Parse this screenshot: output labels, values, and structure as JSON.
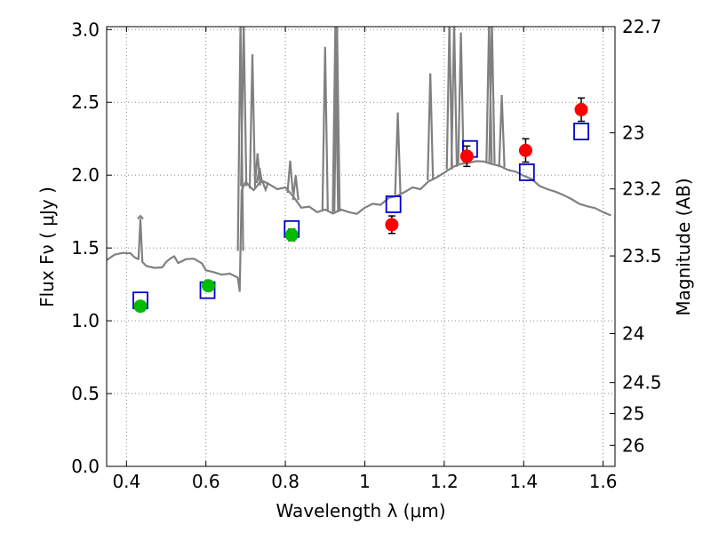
{
  "chart_data": {
    "type": "scatter",
    "xlabel": "Wavelength  λ (μm)",
    "ylabel": "Flux  Fν  ( μJy )",
    "ylabel_right": "Magnitude (AB)",
    "xlim": [
      0.35,
      1.63
    ],
    "ylim": [
      0.0,
      3.02
    ],
    "grid": true,
    "x_ticks": [
      0.4,
      0.6,
      0.8,
      1.0,
      1.2,
      1.4,
      1.6
    ],
    "x_tick_labels": [
      "0.4",
      "0.6",
      "0.8",
      "1",
      "1.2",
      "1.4",
      "1.6"
    ],
    "y_ticks": [
      0.0,
      0.5,
      1.0,
      1.5,
      2.0,
      2.5,
      3.0
    ],
    "y_tick_labels": [
      "0.0",
      "0.5",
      "1.0",
      "1.5",
      "2.0",
      "2.5",
      "3.0"
    ],
    "right_ticks": [
      {
        "label": "22.7",
        "mag": 22.7
      },
      {
        "label": "23",
        "mag": 23.0
      },
      {
        "label": "23.2",
        "mag": 23.2
      },
      {
        "label": "23.5",
        "mag": 23.5
      },
      {
        "label": "24",
        "mag": 24.0
      },
      {
        "label": "24.5",
        "mag": 24.5
      },
      {
        "label": "25",
        "mag": 25.0
      },
      {
        "label": "26",
        "mag": 26.0
      }
    ],
    "colors": {
      "spectrum": "#808080",
      "model": "#0000cc",
      "optical": "#00bb00",
      "nir": "#ff0000",
      "error": "#000000",
      "grid": "#888888"
    },
    "series": [
      {
        "name": "model-spectrum",
        "kind": "line",
        "x": [
          0.35,
          0.37,
          0.39,
          0.41,
          0.42,
          0.43,
          0.435,
          0.44,
          0.45,
          0.47,
          0.49,
          0.5,
          0.51,
          0.52,
          0.53,
          0.55,
          0.57,
          0.59,
          0.6,
          0.62,
          0.64,
          0.66,
          0.68,
          0.685,
          0.69,
          0.7,
          0.72,
          0.74,
          0.76,
          0.78,
          0.8,
          0.82,
          0.84,
          0.86,
          0.88,
          0.9,
          0.92,
          0.94,
          0.96,
          0.98,
          1.0,
          1.02,
          1.04,
          1.06,
          1.08,
          1.1,
          1.12,
          1.14,
          1.16,
          1.18,
          1.2,
          1.22,
          1.24,
          1.26,
          1.28,
          1.3,
          1.32,
          1.34,
          1.36,
          1.38,
          1.4,
          1.42,
          1.44,
          1.46,
          1.48,
          1.5,
          1.52,
          1.54,
          1.56,
          1.58,
          1.6,
          1.62
        ],
        "y": [
          1.42,
          1.45,
          1.47,
          1.46,
          1.44,
          1.42,
          1.7,
          1.4,
          1.38,
          1.36,
          1.37,
          1.4,
          1.43,
          1.44,
          1.4,
          1.42,
          1.43,
          1.39,
          1.35,
          1.33,
          1.32,
          1.32,
          1.3,
          1.2,
          1.9,
          1.95,
          1.9,
          1.96,
          1.94,
          1.9,
          1.92,
          1.85,
          1.78,
          1.78,
          1.75,
          1.76,
          1.74,
          1.76,
          1.75,
          1.73,
          1.78,
          1.8,
          1.8,
          1.84,
          1.86,
          1.88,
          1.92,
          1.9,
          1.96,
          1.98,
          2.02,
          2.05,
          2.08,
          2.08,
          2.1,
          2.09,
          2.08,
          2.06,
          2.04,
          2.02,
          2.0,
          1.97,
          1.93,
          1.9,
          1.89,
          1.86,
          1.84,
          1.8,
          1.79,
          1.77,
          1.75,
          1.72
        ]
      },
      {
        "name": "emission-lines",
        "kind": "spikes",
        "x": [
          0.435,
          0.687,
          0.695,
          0.717,
          0.73,
          0.735,
          0.75,
          0.812,
          0.826,
          0.9,
          0.926,
          0.93,
          1.083,
          1.165,
          1.213,
          1.225,
          1.242,
          1.313,
          1.32,
          1.345
        ],
        "y": [
          1.72,
          3.05,
          3.05,
          2.83,
          2.15,
          2.05,
          1.9,
          2.1,
          2.0,
          2.88,
          3.05,
          3.05,
          2.43,
          2.7,
          3.05,
          3.05,
          2.98,
          3.05,
          3.05,
          2.55
        ]
      },
      {
        "name": "model-photometry",
        "kind": "open-squares",
        "x": [
          0.435,
          0.604,
          0.816,
          1.072,
          1.265,
          1.408,
          1.545
        ],
        "y": [
          1.14,
          1.21,
          1.63,
          1.8,
          2.18,
          2.02,
          2.3
        ]
      },
      {
        "name": "optical-photometry",
        "kind": "filled-circles",
        "x": [
          0.435,
          0.606,
          0.816
        ],
        "y": [
          1.1,
          1.24,
          1.59
        ],
        "yerr": [
          0.03,
          0.03,
          0.04
        ]
      },
      {
        "name": "nir-photometry",
        "kind": "filled-circles",
        "x": [
          1.068,
          1.257,
          1.405,
          1.545
        ],
        "y": [
          1.66,
          2.13,
          2.17,
          2.45
        ],
        "yerr": [
          0.06,
          0.07,
          0.08,
          0.08
        ]
      }
    ]
  }
}
